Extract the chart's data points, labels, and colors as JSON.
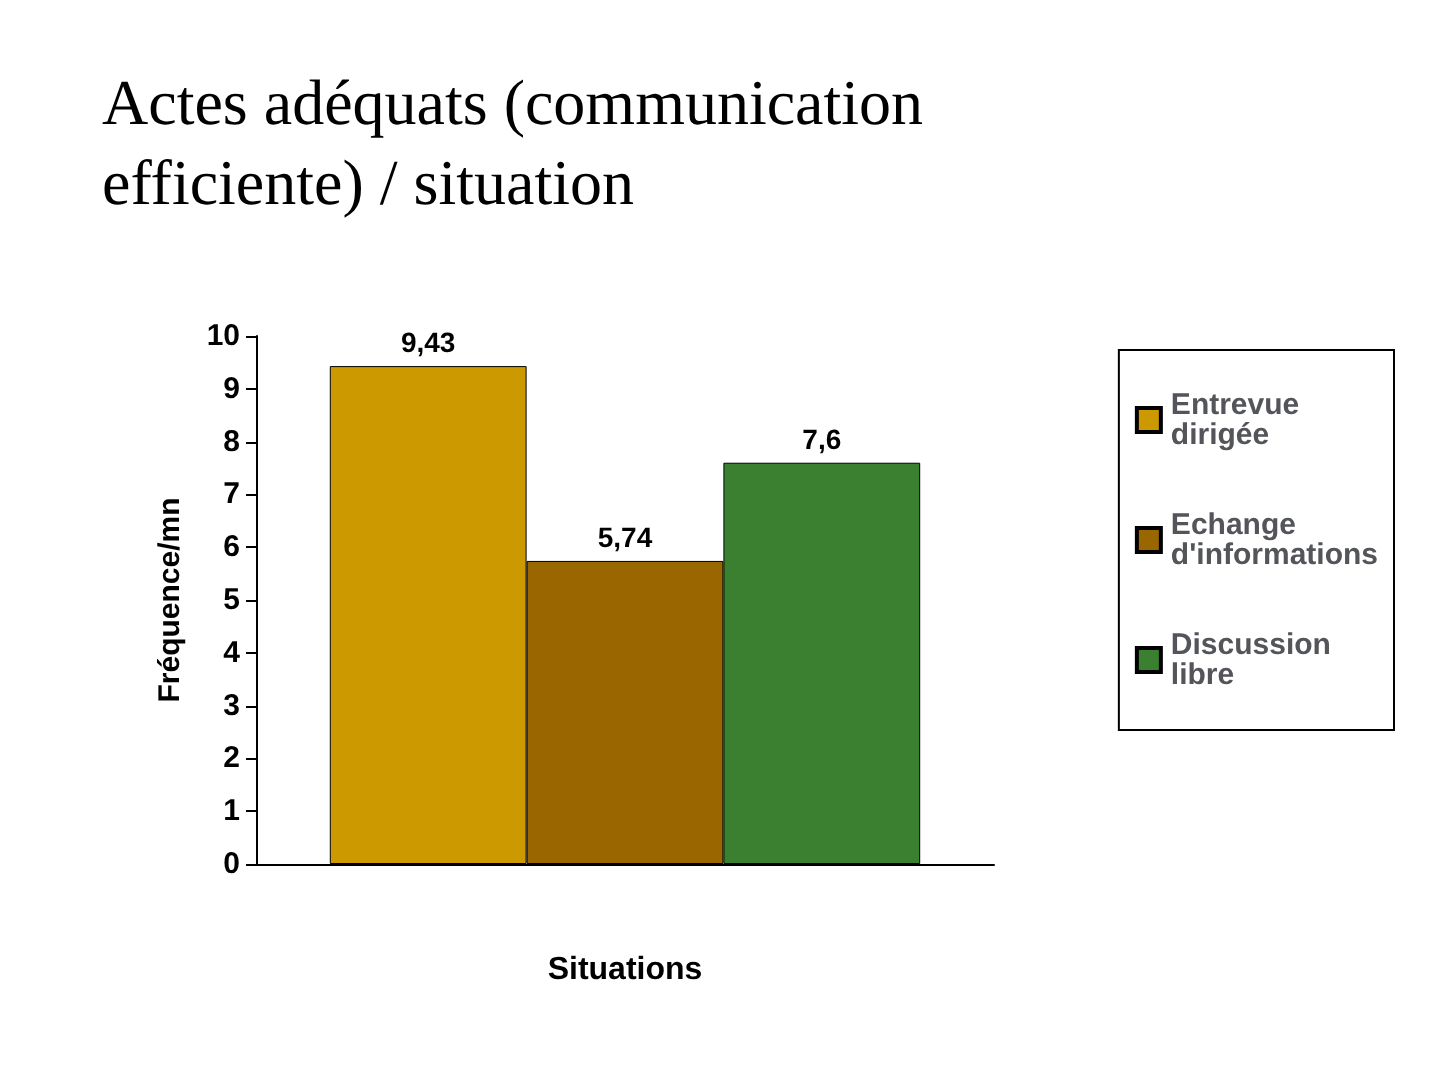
{
  "chart_data": {
    "type": "bar",
    "title": "Actes adéquats (communication efficiente) / situation",
    "xlabel": "Situations",
    "ylabel": "Fréquence/mn",
    "categories": [
      null
    ],
    "series": [
      {
        "name": "Entrevue dirigée",
        "color": "#cc9900",
        "values": [
          9.43
        ],
        "value_labels": [
          "9,43"
        ]
      },
      {
        "name": "Echange d'informations",
        "color": "#996600",
        "values": [
          5.74
        ],
        "value_labels": [
          "5,74"
        ]
      },
      {
        "name": "Discussion libre",
        "color": "#3a8030",
        "values": [
          7.6
        ],
        "value_labels": [
          "7,6"
        ]
      }
    ],
    "ylim": [
      0,
      10
    ],
    "yticks": [
      0,
      1,
      2,
      3,
      4,
      5,
      6,
      7,
      8,
      9,
      10
    ],
    "grid": false,
    "legend": "right"
  }
}
